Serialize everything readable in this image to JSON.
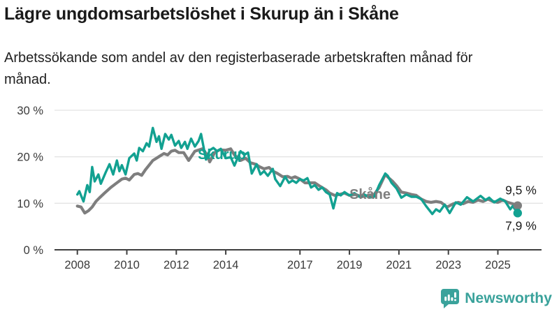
{
  "header": {
    "title": "Lägre ungdomsarbetslöshet i Skurup än i Skåne",
    "subtitle": "Arbetssökande som andel av den registerbaserade arbetskraften månad för månad."
  },
  "colors": {
    "skurup": "#12a191",
    "skane": "#7e7e7e",
    "grid": "#e4e4e4",
    "axis": "#3f3f3f",
    "tick_text": "#3a3a3a",
    "value_text": "#1a1a1a",
    "logo": "#3aa29b"
  },
  "chart_data": {
    "type": "line",
    "title": "Lägre ungdomsarbetslöshet i Skurup än i Skåne",
    "subtitle": "Arbetssökande som andel av den registerbaserade arbetskraften månad för månad.",
    "unit": "%",
    "grid": true,
    "legend_position": "inline-labels",
    "x_axis": {
      "ticks": [
        2008,
        2010,
        2012,
        2014,
        2017,
        2019,
        2021,
        2023,
        2025
      ],
      "tick_labels": [
        "2008",
        "2010",
        "2012",
        "2014",
        "2017",
        "2019",
        "2021",
        "2023",
        "2025"
      ],
      "range": [
        2007.1,
        2026.8
      ]
    },
    "y_axis": {
      "ticks": [
        0,
        10,
        20,
        30
      ],
      "tick_labels": [
        "0 %",
        "10 %",
        "20 %",
        "30 %"
      ],
      "range": [
        0,
        32
      ]
    },
    "series": [
      {
        "name": "Skåne",
        "color": "#7e7e7e",
        "end_label": "9,5 %",
        "end_value": 9.5,
        "label_pos": [
          2019.0,
          10.95
        ],
        "points": [
          [
            2008.0,
            9.4
          ],
          [
            2008.15,
            9.2
          ],
          [
            2008.3,
            7.9
          ],
          [
            2008.45,
            8.4
          ],
          [
            2008.6,
            9.2
          ],
          [
            2008.75,
            10.4
          ],
          [
            2008.9,
            11.2
          ],
          [
            2009.1,
            12.2
          ],
          [
            2009.35,
            13.4
          ],
          [
            2009.6,
            14.4
          ],
          [
            2009.8,
            15.2
          ],
          [
            2009.95,
            15.4
          ],
          [
            2010.1,
            15.0
          ],
          [
            2010.3,
            16.2
          ],
          [
            2010.45,
            16.4
          ],
          [
            2010.6,
            16.0
          ],
          [
            2010.75,
            17.2
          ],
          [
            2010.9,
            18.2
          ],
          [
            2011.05,
            19.2
          ],
          [
            2011.2,
            19.7
          ],
          [
            2011.35,
            20.2
          ],
          [
            2011.5,
            20.7
          ],
          [
            2011.65,
            20.4
          ],
          [
            2011.8,
            21.2
          ],
          [
            2011.95,
            21.4
          ],
          [
            2012.1,
            20.9
          ],
          [
            2012.3,
            20.9
          ],
          [
            2012.5,
            19.2
          ],
          [
            2012.75,
            21.2
          ],
          [
            2013.05,
            21.7
          ],
          [
            2013.25,
            20.4
          ],
          [
            2013.35,
            18.9
          ],
          [
            2013.55,
            20.9
          ],
          [
            2013.75,
            21.5
          ],
          [
            2014.0,
            21.4
          ],
          [
            2014.2,
            21.7
          ],
          [
            2014.35,
            20.4
          ],
          [
            2014.6,
            19.2
          ],
          [
            2014.8,
            19.7
          ],
          [
            2015.0,
            18.7
          ],
          [
            2015.2,
            18.4
          ],
          [
            2015.35,
            17.9
          ],
          [
            2015.55,
            17.4
          ],
          [
            2015.75,
            17.7
          ],
          [
            2015.9,
            16.9
          ],
          [
            2016.1,
            16.4
          ],
          [
            2016.3,
            15.7
          ],
          [
            2016.5,
            15.8
          ],
          [
            2016.65,
            15.4
          ],
          [
            2016.8,
            15.7
          ],
          [
            2017.0,
            15.2
          ],
          [
            2017.2,
            14.4
          ],
          [
            2017.4,
            14.4
          ],
          [
            2017.6,
            14.4
          ],
          [
            2017.8,
            13.7
          ],
          [
            2018.05,
            12.9
          ],
          [
            2018.2,
            12.2
          ],
          [
            2018.4,
            11.7
          ],
          [
            2018.6,
            11.9
          ],
          [
            2018.8,
            12.2
          ],
          [
            2019.0,
            11.7
          ],
          [
            2019.25,
            11.9
          ],
          [
            2019.5,
            11.4
          ],
          [
            2019.75,
            11.7
          ],
          [
            2020.0,
            11.9
          ],
          [
            2020.2,
            13.4
          ],
          [
            2020.45,
            16.2
          ],
          [
            2020.6,
            15.4
          ],
          [
            2020.75,
            14.7
          ],
          [
            2020.9,
            13.8
          ],
          [
            2021.1,
            12.4
          ],
          [
            2021.3,
            12.2
          ],
          [
            2021.5,
            11.9
          ],
          [
            2021.7,
            11.7
          ],
          [
            2021.9,
            10.9
          ],
          [
            2022.1,
            10.4
          ],
          [
            2022.3,
            10.2
          ],
          [
            2022.5,
            10.4
          ],
          [
            2022.7,
            10.2
          ],
          [
            2022.95,
            9.2
          ],
          [
            2023.2,
            9.9
          ],
          [
            2023.4,
            10.2
          ],
          [
            2023.6,
            9.9
          ],
          [
            2023.8,
            10.4
          ],
          [
            2024.0,
            10.2
          ],
          [
            2024.2,
            10.7
          ],
          [
            2024.4,
            10.4
          ],
          [
            2024.6,
            10.9
          ],
          [
            2024.8,
            10.4
          ],
          [
            2025.0,
            10.2
          ],
          [
            2025.2,
            10.7
          ],
          [
            2025.4,
            10.2
          ],
          [
            2025.6,
            9.9
          ],
          [
            2025.8,
            9.5
          ]
        ]
      },
      {
        "name": "Skurup",
        "color": "#12a191",
        "end_label": "7,9 %",
        "end_value": 7.9,
        "label_pos": [
          2012.87,
          19.5
        ],
        "points": [
          [
            2008.0,
            11.9
          ],
          [
            2008.08,
            12.6
          ],
          [
            2008.17,
            11.4
          ],
          [
            2008.25,
            10.4
          ],
          [
            2008.4,
            13.9
          ],
          [
            2008.5,
            12.4
          ],
          [
            2008.6,
            17.8
          ],
          [
            2008.7,
            14.7
          ],
          [
            2008.85,
            16.2
          ],
          [
            2008.95,
            14.2
          ],
          [
            2009.15,
            16.7
          ],
          [
            2009.3,
            18.4
          ],
          [
            2009.45,
            16.2
          ],
          [
            2009.6,
            19.2
          ],
          [
            2009.7,
            16.9
          ],
          [
            2009.8,
            18.2
          ],
          [
            2009.95,
            16.2
          ],
          [
            2010.1,
            19.7
          ],
          [
            2010.3,
            20.7
          ],
          [
            2010.4,
            19.2
          ],
          [
            2010.5,
            21.9
          ],
          [
            2010.65,
            21.2
          ],
          [
            2010.8,
            22.9
          ],
          [
            2010.9,
            22.2
          ],
          [
            2011.05,
            26.2
          ],
          [
            2011.2,
            23.2
          ],
          [
            2011.3,
            24.4
          ],
          [
            2011.4,
            21.7
          ],
          [
            2011.55,
            24.9
          ],
          [
            2011.7,
            23.7
          ],
          [
            2011.8,
            24.7
          ],
          [
            2011.95,
            22.4
          ],
          [
            2012.1,
            23.4
          ],
          [
            2012.2,
            21.9
          ],
          [
            2012.35,
            23.2
          ],
          [
            2012.45,
            21.7
          ],
          [
            2012.6,
            23.9
          ],
          [
            2012.75,
            22.2
          ],
          [
            2012.9,
            23.4
          ],
          [
            2013.0,
            24.9
          ],
          [
            2013.2,
            19.4
          ],
          [
            2013.35,
            21.4
          ],
          [
            2013.5,
            21.9
          ],
          [
            2013.65,
            21.2
          ],
          [
            2013.8,
            21.7
          ],
          [
            2014.0,
            19.7
          ],
          [
            2014.2,
            19.9
          ],
          [
            2014.35,
            18.1
          ],
          [
            2014.6,
            21.2
          ],
          [
            2014.75,
            20.4
          ],
          [
            2014.9,
            20.9
          ],
          [
            2015.05,
            16.4
          ],
          [
            2015.25,
            18.4
          ],
          [
            2015.4,
            16.2
          ],
          [
            2015.55,
            16.9
          ],
          [
            2015.7,
            15.9
          ],
          [
            2015.9,
            17.4
          ],
          [
            2016.0,
            15.2
          ],
          [
            2016.2,
            13.7
          ],
          [
            2016.4,
            15.7
          ],
          [
            2016.55,
            14.4
          ],
          [
            2016.7,
            14.9
          ],
          [
            2016.85,
            14.4
          ],
          [
            2017.0,
            15.2
          ],
          [
            2017.15,
            14.9
          ],
          [
            2017.3,
            15.4
          ],
          [
            2017.45,
            13.4
          ],
          [
            2017.6,
            13.9
          ],
          [
            2017.75,
            12.9
          ],
          [
            2017.9,
            13.4
          ],
          [
            2018.05,
            12.4
          ],
          [
            2018.2,
            11.9
          ],
          [
            2018.35,
            8.9
          ],
          [
            2018.5,
            12.2
          ],
          [
            2018.65,
            11.7
          ],
          [
            2018.8,
            12.4
          ],
          [
            2019.0,
            11.7
          ],
          [
            2019.2,
            12.2
          ],
          [
            2019.4,
            11.4
          ],
          [
            2019.6,
            11.9
          ],
          [
            2019.8,
            11.2
          ],
          [
            2020.0,
            11.4
          ],
          [
            2020.2,
            13.9
          ],
          [
            2020.45,
            16.4
          ],
          [
            2020.55,
            15.9
          ],
          [
            2020.7,
            14.4
          ],
          [
            2020.9,
            13.2
          ],
          [
            2021.1,
            11.2
          ],
          [
            2021.3,
            11.9
          ],
          [
            2021.5,
            11.4
          ],
          [
            2021.7,
            11.4
          ],
          [
            2021.9,
            10.9
          ],
          [
            2022.1,
            9.4
          ],
          [
            2022.35,
            7.7
          ],
          [
            2022.5,
            8.7
          ],
          [
            2022.65,
            8.2
          ],
          [
            2022.85,
            9.7
          ],
          [
            2023.05,
            7.9
          ],
          [
            2023.3,
            10.2
          ],
          [
            2023.5,
            9.7
          ],
          [
            2023.75,
            11.3
          ],
          [
            2024.0,
            10.4
          ],
          [
            2024.3,
            11.6
          ],
          [
            2024.5,
            10.7
          ],
          [
            2024.65,
            11.2
          ],
          [
            2024.85,
            10.2
          ],
          [
            2025.1,
            11.0
          ],
          [
            2025.3,
            10.4
          ],
          [
            2025.5,
            8.7
          ],
          [
            2025.6,
            9.4
          ],
          [
            2025.8,
            7.9
          ]
        ]
      }
    ]
  },
  "footer": {
    "brand": "Newsworthy"
  }
}
